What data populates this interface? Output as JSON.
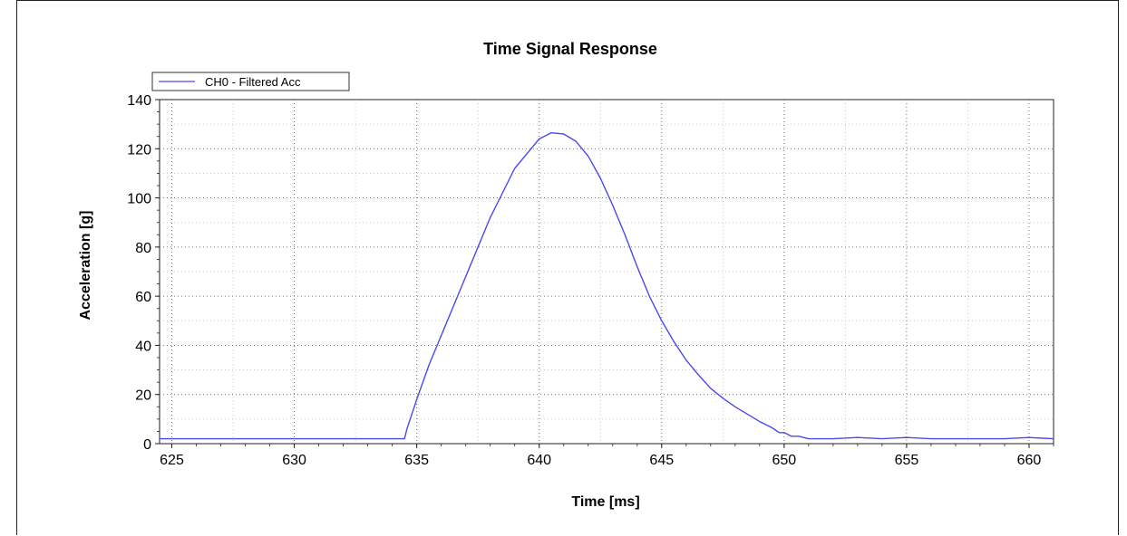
{
  "chart_data": {
    "type": "line",
    "title": "Time Signal Response",
    "xlabel": "Time [ms]",
    "ylabel": "Acceleration [g]",
    "xlim": [
      624.5,
      661
    ],
    "ylim": [
      0,
      140
    ],
    "xticks": [
      625,
      630,
      635,
      640,
      645,
      650,
      655,
      660
    ],
    "yticks": [
      0,
      20,
      40,
      60,
      80,
      100,
      120,
      140
    ],
    "grid": true,
    "legend": "top-left",
    "series": [
      {
        "name": "CH0 - Filtered Acc",
        "color": "#4a4aee",
        "x": [
          624.5,
          626,
          628,
          630,
          632,
          633.5,
          634.5,
          634.6,
          634.8,
          635,
          635.5,
          636,
          637,
          638,
          639,
          640,
          640.5,
          641,
          641.5,
          642,
          642.5,
          643,
          643.5,
          644,
          644.5,
          645,
          645.5,
          646,
          646.5,
          647,
          647.5,
          648,
          648.5,
          649,
          649.5,
          649.8,
          650,
          650.3,
          650.6,
          651,
          652,
          653,
          654,
          655,
          656,
          657,
          658,
          659,
          660,
          661
        ],
        "y": [
          2,
          2,
          2,
          2,
          2,
          2,
          2,
          6,
          12,
          18,
          32,
          44,
          68,
          92,
          112,
          124,
          126.5,
          126,
          123,
          117,
          108,
          97,
          85,
          72,
          60,
          50,
          41.5,
          34,
          28,
          22.5,
          18.5,
          15,
          12,
          9,
          6.5,
          4.5,
          4.5,
          3,
          3,
          2,
          2,
          2.5,
          2,
          2.5,
          2,
          2,
          2,
          2,
          2.5,
          2
        ]
      }
    ]
  }
}
